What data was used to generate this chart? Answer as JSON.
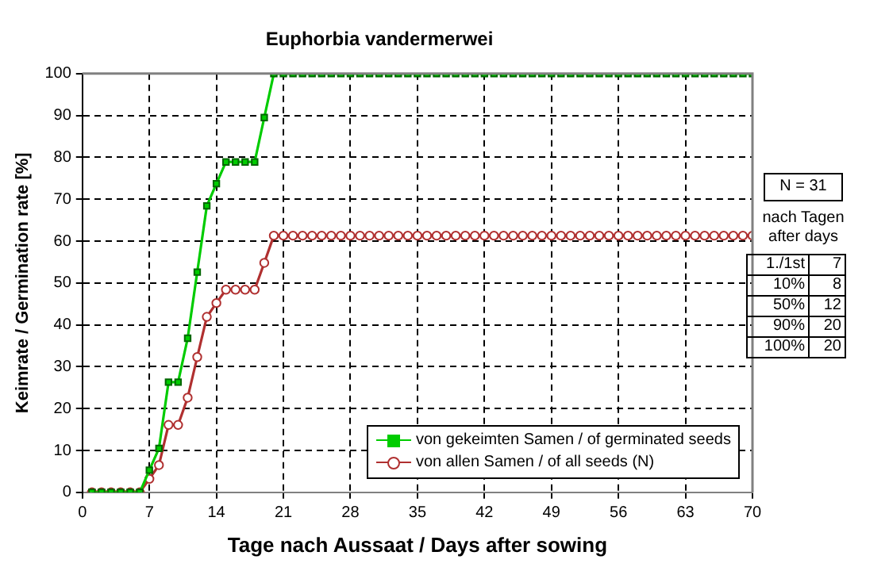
{
  "chart_data": {
    "type": "line",
    "title": "Euphorbia vandermerwei",
    "xlabel": "Tage nach Aussaat / Days after sowing",
    "ylabel": "Keimrate / Germination rate [%]",
    "x": [
      1,
      2,
      3,
      4,
      5,
      6,
      7,
      8,
      9,
      10,
      11,
      12,
      13,
      14,
      15,
      16,
      17,
      18,
      19,
      20,
      21,
      22,
      23,
      24,
      25,
      26,
      27,
      28,
      29,
      30,
      31,
      32,
      33,
      34,
      35,
      36,
      37,
      38,
      39,
      40,
      41,
      42,
      43,
      44,
      45,
      46,
      47,
      48,
      49,
      50,
      51,
      52,
      53,
      54,
      55,
      56,
      57,
      58,
      59,
      60,
      61,
      62,
      63,
      64,
      65,
      66,
      67,
      68,
      69,
      70
    ],
    "series": [
      {
        "name": "von gekeimten Samen / of germinated seeds",
        "color": "#00cc00",
        "marker": "square",
        "values": [
          0,
          0,
          0,
          0,
          0,
          0,
          5.3,
          10.5,
          26.3,
          26.3,
          36.8,
          52.6,
          68.4,
          73.7,
          78.9,
          78.9,
          78.9,
          78.9,
          89.5,
          100,
          100,
          100,
          100,
          100,
          100,
          100,
          100,
          100,
          100,
          100,
          100,
          100,
          100,
          100,
          100,
          100,
          100,
          100,
          100,
          100,
          100,
          100,
          100,
          100,
          100,
          100,
          100,
          100,
          100,
          100,
          100,
          100,
          100,
          100,
          100,
          100,
          100,
          100,
          100,
          100,
          100,
          100,
          100,
          100,
          100,
          100,
          100,
          100,
          100,
          100
        ]
      },
      {
        "name": "von allen Samen / of all seeds (N)",
        "color": "#b03030",
        "marker": "circle",
        "values": [
          0,
          0,
          0,
          0,
          0,
          0,
          3.2,
          6.5,
          16.1,
          16.1,
          22.6,
          32.3,
          41.9,
          45.2,
          48.4,
          48.4,
          48.4,
          48.4,
          54.8,
          61.3,
          61.3,
          61.3,
          61.3,
          61.3,
          61.3,
          61.3,
          61.3,
          61.3,
          61.3,
          61.3,
          61.3,
          61.3,
          61.3,
          61.3,
          61.3,
          61.3,
          61.3,
          61.3,
          61.3,
          61.3,
          61.3,
          61.3,
          61.3,
          61.3,
          61.3,
          61.3,
          61.3,
          61.3,
          61.3,
          61.3,
          61.3,
          61.3,
          61.3,
          61.3,
          61.3,
          61.3,
          61.3,
          61.3,
          61.3,
          61.3,
          61.3,
          61.3,
          61.3,
          61.3,
          61.3,
          61.3,
          61.3,
          61.3,
          61.3,
          61.3
        ]
      }
    ],
    "xlim": [
      0,
      70
    ],
    "xticks": [
      0,
      7,
      14,
      21,
      28,
      35,
      42,
      49,
      56,
      63,
      70
    ],
    "ylim": [
      0,
      100
    ],
    "yticks": [
      0,
      10,
      20,
      30,
      40,
      50,
      60,
      70,
      80,
      90,
      100
    ],
    "grid": true,
    "legend": "bottom right",
    "line_style": "solid",
    "annotations": [
      "N = 31",
      "nach Tagen",
      "after days",
      "1./1st",
      "7",
      "10%",
      "8",
      "50%",
      "12",
      "90%",
      "20",
      "100%",
      "20"
    ]
  }
}
